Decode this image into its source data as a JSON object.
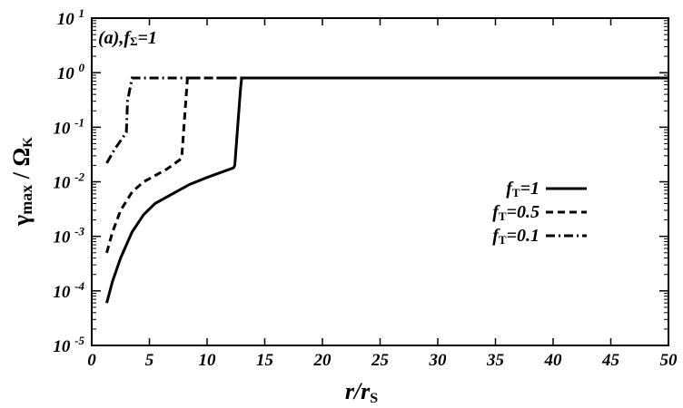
{
  "chart_data": {
    "type": "line",
    "annotation": "(a),fΣ=1",
    "annotation_main": "(a),f",
    "annotation_sub": "Σ",
    "annotation_tail": "=1",
    "xlabel_main": "r/r",
    "xlabel_sub": "S",
    "ylabel_main": "γ",
    "ylabel_sub1": "max",
    "ylabel_mid": " / Ω",
    "ylabel_sub2": "K",
    "xlim": [
      0,
      50
    ],
    "ylim_log10": [
      -5,
      1
    ],
    "y_scale": "log",
    "grid": false,
    "legend_placement": "right",
    "x_ticks": [
      "0",
      "5",
      "10",
      "15",
      "20",
      "25",
      "30",
      "35",
      "40",
      "45",
      "50"
    ],
    "y_ticks": [
      {
        "base": "10",
        "exp": "1"
      },
      {
        "base": "10",
        "exp": "0"
      },
      {
        "base": "10",
        "exp": "-1"
      },
      {
        "base": "10",
        "exp": "-2"
      },
      {
        "base": "10",
        "exp": "-3"
      },
      {
        "base": "10",
        "exp": "-4"
      },
      {
        "base": "10",
        "exp": "-5"
      }
    ],
    "series": [
      {
        "name": "fT=1",
        "label_main": "f",
        "label_sub": "T",
        "label_tail": "=1",
        "dash": "solid",
        "x": [
          1.3,
          1.8,
          2.5,
          3.5,
          4.5,
          5.5,
          7,
          8.5,
          10,
          12.3,
          12.4,
          12.9,
          13,
          50
        ],
        "y": [
          6e-05,
          0.00015,
          0.0004,
          0.0012,
          0.0025,
          0.004,
          0.006,
          0.009,
          0.012,
          0.018,
          0.02,
          0.5,
          0.8,
          0.8
        ]
      },
      {
        "name": "fT=0.5",
        "label_main": "f",
        "label_sub": "T",
        "label_tail": "=0.5",
        "dash": "dash",
        "x": [
          1.3,
          1.8,
          2.5,
          3.5,
          4.5,
          5.5,
          6.5,
          7.6,
          7.8,
          8.3,
          8.5,
          50
        ],
        "y": [
          0.0005,
          0.0012,
          0.003,
          0.0065,
          0.01,
          0.013,
          0.017,
          0.025,
          0.028,
          0.8,
          0.8,
          0.8
        ]
      },
      {
        "name": "fT=0.1",
        "label_main": "f",
        "label_sub": "T",
        "label_tail": "=0.1",
        "dash": "dashdot",
        "x": [
          1.3,
          2.0,
          3.0,
          3.1,
          3.5,
          50
        ],
        "y": [
          0.022,
          0.04,
          0.08,
          0.3,
          0.8,
          0.8
        ]
      }
    ]
  }
}
